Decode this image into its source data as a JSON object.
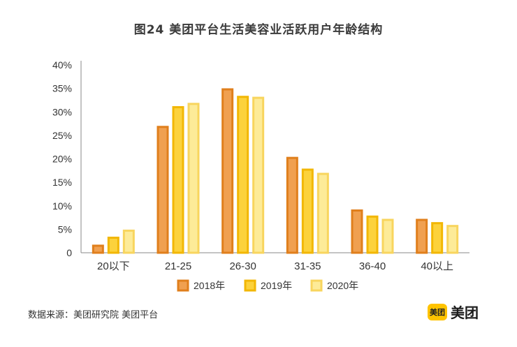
{
  "brand": {
    "logo_text": "美团",
    "name": "美团",
    "logo_color": "#ffc300"
  },
  "source": "数据来源：美团研究院 美团平台",
  "chart_data": {
    "type": "bar",
    "title": "图24 美团平台生活美容业活跃用户年龄结构",
    "categories": [
      "20以下",
      "21-25",
      "26-30",
      "31-35",
      "36-40",
      "40以上"
    ],
    "series": [
      {
        "name": "2018年",
        "values": [
          1.5,
          26.8,
          34.8,
          20.2,
          9.0,
          7.0
        ],
        "fill": "#f0a050",
        "stroke": "#e07f1c"
      },
      {
        "name": "2019年",
        "values": [
          3.2,
          31.0,
          33.2,
          17.7,
          7.7,
          6.3
        ],
        "fill": "#fcd23c",
        "stroke": "#f2b705"
      },
      {
        "name": "2020年",
        "values": [
          4.7,
          31.7,
          33.0,
          16.8,
          7.0,
          5.7
        ],
        "fill": "#fdeb98",
        "stroke": "#f8d55e"
      }
    ],
    "ylim": [
      0,
      40
    ],
    "yticks": [
      "0",
      "5%",
      "10%",
      "15%",
      "20%",
      "25%",
      "30%",
      "35%",
      "40%"
    ],
    "ytick_values": [
      0,
      5,
      10,
      15,
      20,
      25,
      30,
      35,
      40
    ],
    "grid": false,
    "legend_position": "bottom"
  }
}
